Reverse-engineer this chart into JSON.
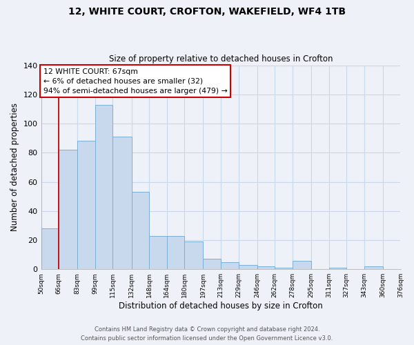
{
  "title": "12, WHITE COURT, CROFTON, WAKEFIELD, WF4 1TB",
  "subtitle": "Size of property relative to detached houses in Crofton",
  "xlabel": "Distribution of detached houses by size in Crofton",
  "ylabel": "Number of detached properties",
  "bar_color": "#c8d9ed",
  "bar_edge_color": "#7bafd4",
  "grid_color": "#c8d8ea",
  "annotation_box_color": "#ffffff",
  "annotation_box_edge": "#cc0000",
  "red_line_x": 66,
  "annotation_text_line1": "12 WHITE COURT: 67sqm",
  "annotation_text_line2": "← 6% of detached houses are smaller (32)",
  "annotation_text_line3": "94% of semi-detached houses are larger (479) →",
  "bins": [
    50,
    66,
    83,
    99,
    115,
    132,
    148,
    164,
    180,
    197,
    213,
    229,
    246,
    262,
    278,
    295,
    311,
    327,
    343,
    360,
    376
  ],
  "values": [
    28,
    82,
    88,
    113,
    91,
    53,
    23,
    23,
    19,
    7,
    5,
    3,
    2,
    1,
    6,
    0,
    1,
    0,
    2,
    0
  ],
  "ylim": [
    0,
    140
  ],
  "yticks": [
    0,
    20,
    40,
    60,
    80,
    100,
    120,
    140
  ],
  "tick_labels": [
    "50sqm",
    "66sqm",
    "83sqm",
    "99sqm",
    "115sqm",
    "132sqm",
    "148sqm",
    "164sqm",
    "180sqm",
    "197sqm",
    "213sqm",
    "229sqm",
    "246sqm",
    "262sqm",
    "278sqm",
    "295sqm",
    "311sqm",
    "327sqm",
    "343sqm",
    "360sqm",
    "376sqm"
  ],
  "footnote1": "Contains HM Land Registry data © Crown copyright and database right 2024.",
  "footnote2": "Contains public sector information licensed under the Open Government Licence v3.0.",
  "background_color": "#eef2f8",
  "fig_width": 6.0,
  "fig_height": 5.0,
  "dpi": 100
}
